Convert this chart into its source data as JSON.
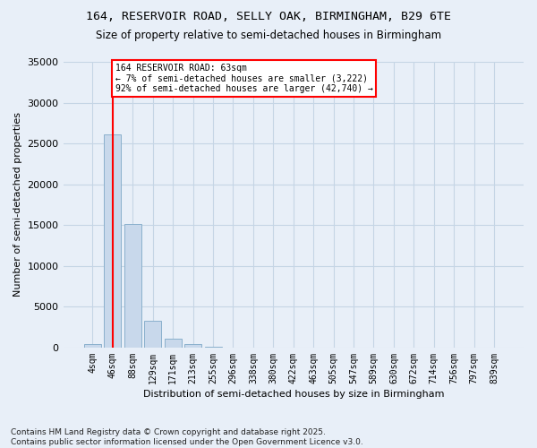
{
  "title_line1": "164, RESERVOIR ROAD, SELLY OAK, BIRMINGHAM, B29 6TE",
  "title_line2": "Size of property relative to semi-detached houses in Birmingham",
  "xlabel": "Distribution of semi-detached houses by size in Birmingham",
  "ylabel": "Number of semi-detached properties",
  "footer": "Contains HM Land Registry data © Crown copyright and database right 2025.\nContains public sector information licensed under the Open Government Licence v3.0.",
  "categories": [
    "4sqm",
    "46sqm",
    "88sqm",
    "129sqm",
    "171sqm",
    "213sqm",
    "255sqm",
    "296sqm",
    "338sqm",
    "380sqm",
    "422sqm",
    "463sqm",
    "505sqm",
    "547sqm",
    "589sqm",
    "630sqm",
    "672sqm",
    "714sqm",
    "756sqm",
    "797sqm",
    "839sqm"
  ],
  "values": [
    400,
    26100,
    15100,
    3300,
    1050,
    400,
    150,
    0,
    0,
    0,
    0,
    0,
    0,
    0,
    0,
    0,
    0,
    0,
    0,
    0,
    0
  ],
  "bar_color": "#c8d8eb",
  "bar_edge_color": "#8ab0cc",
  "grid_color": "#c5d5e5",
  "background_color": "#e8eff8",
  "vline_x_index": 1,
  "vline_color": "red",
  "annotation_text": "164 RESERVOIR ROAD: 63sqm\n← 7% of semi-detached houses are smaller (3,222)\n92% of semi-detached houses are larger (42,740) →",
  "ylim": [
    0,
    35000
  ],
  "yticks": [
    0,
    5000,
    10000,
    15000,
    20000,
    25000,
    30000,
    35000
  ],
  "ytick_labels": [
    "0",
    "5000",
    "10000",
    "15000",
    "20000",
    "25000",
    "30000",
    "35000"
  ]
}
